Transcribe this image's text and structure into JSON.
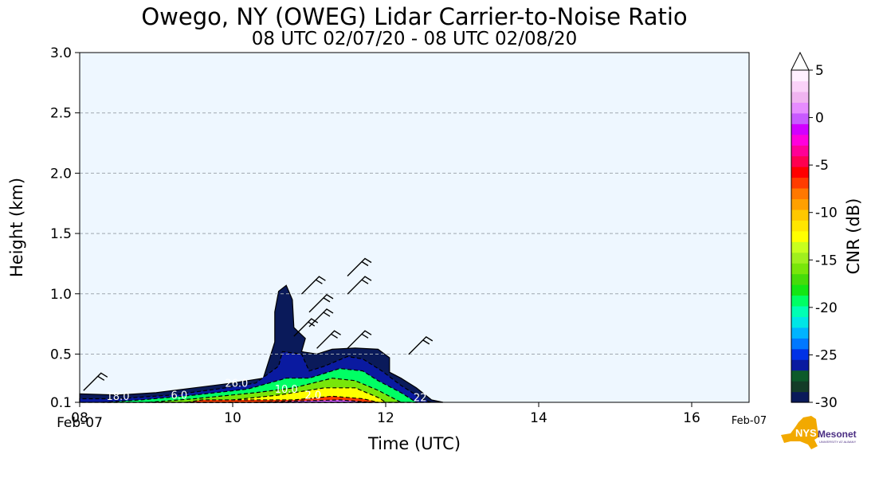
{
  "chart_data": {
    "type": "heatmap",
    "title": "Owego, NY (OWEG) Lidar Carrier-to-Noise Ratio",
    "subtitle": "08 UTC 02/07/20 - 08 UTC 02/08/20",
    "xlabel": "Time (UTC)",
    "ylabel": "Height (km)",
    "xlim": [
      8,
      16.75
    ],
    "ylim": [
      0.1,
      3.0
    ],
    "x_ticks": [
      8,
      10,
      12,
      14,
      16
    ],
    "x_tick_labels": [
      "08",
      "10",
      "12",
      "14",
      "16"
    ],
    "x_date_labels": [
      {
        "x": 8,
        "text": "Feb-07"
      },
      {
        "x": 16.75,
        "text": "Feb-07"
      }
    ],
    "y_ticks": [
      0.1,
      0.5,
      1.0,
      1.5,
      2.0,
      2.5,
      3.0
    ],
    "y_tick_labels": [
      "0.1",
      "0.5",
      "1.0",
      "1.5",
      "2.0",
      "2.5",
      "3.0"
    ],
    "grid": "horizontal-dashed",
    "background_color": "#eef7ff",
    "colorbar": {
      "label": "CNR (dB)",
      "min": -30,
      "max": 5,
      "extend": "max",
      "tick_values": [
        5,
        0,
        -5,
        -10,
        -15,
        -20,
        -25,
        -30
      ],
      "tick_labels": [
        "5",
        "0",
        "-5",
        "-10",
        "-15",
        "-20",
        "-25",
        "-30"
      ],
      "colors": [
        "#0a1a5a",
        "#143c28",
        "#0c5a2a",
        "#0a1aa0",
        "#0032e6",
        "#0078ff",
        "#00b4ff",
        "#00e6e6",
        "#00ffb4",
        "#00ff64",
        "#14e614",
        "#46dc0a",
        "#78e60a",
        "#a0f01e",
        "#c8ff1e",
        "#ffff00",
        "#ffe600",
        "#ffc800",
        "#ffa000",
        "#ff7800",
        "#ff3c00",
        "#ff0000",
        "#ff0050",
        "#ff0096",
        "#ff00dc",
        "#d200ff",
        "#c85aff",
        "#e68cff",
        "#f0b4f0",
        "#fad2f8",
        "#fff0ff"
      ]
    },
    "contour_labels": [
      {
        "x": 8.5,
        "y": 0.12,
        "text": "18.0"
      },
      {
        "x": 9.3,
        "y": 0.13,
        "text": "6.0"
      },
      {
        "x": 10.05,
        "y": 0.23,
        "text": "26.0"
      },
      {
        "x": 10.7,
        "y": 0.18,
        "text": "10.0"
      },
      {
        "x": 11.05,
        "y": 0.13,
        "text": "2.0"
      },
      {
        "x": 12.45,
        "y": 0.11,
        "text": "22"
      }
    ],
    "cnr_regions": [
      {
        "level": -30,
        "polygon": [
          [
            8,
            0.1
          ],
          [
            8,
            0.17
          ],
          [
            8.5,
            0.16
          ],
          [
            9.0,
            0.18
          ],
          [
            9.5,
            0.22
          ],
          [
            10.0,
            0.26
          ],
          [
            10.4,
            0.3
          ],
          [
            10.55,
            0.6
          ],
          [
            10.55,
            0.85
          ],
          [
            10.6,
            1.02
          ],
          [
            10.7,
            1.07
          ],
          [
            10.78,
            0.95
          ],
          [
            10.8,
            0.72
          ],
          [
            10.95,
            0.63
          ],
          [
            10.9,
            0.52
          ],
          [
            11.1,
            0.5
          ],
          [
            11.3,
            0.54
          ],
          [
            11.6,
            0.55
          ],
          [
            11.9,
            0.54
          ],
          [
            12.05,
            0.47
          ],
          [
            12.05,
            0.35
          ],
          [
            12.2,
            0.3
          ],
          [
            12.4,
            0.22
          ],
          [
            12.6,
            0.12
          ],
          [
            12.75,
            0.1
          ]
        ]
      },
      {
        "level": -26,
        "polygon": [
          [
            8,
            0.1
          ],
          [
            8,
            0.13
          ],
          [
            8.5,
            0.13
          ],
          [
            9.2,
            0.16
          ],
          [
            9.8,
            0.21
          ],
          [
            10.3,
            0.26
          ],
          [
            10.6,
            0.4
          ],
          [
            10.65,
            0.52
          ],
          [
            10.9,
            0.5
          ],
          [
            11.0,
            0.36
          ],
          [
            11.2,
            0.4
          ],
          [
            11.5,
            0.48
          ],
          [
            11.7,
            0.46
          ],
          [
            11.95,
            0.36
          ],
          [
            12.2,
            0.24
          ],
          [
            12.5,
            0.12
          ],
          [
            12.6,
            0.1
          ]
        ]
      },
      {
        "level": -20,
        "polygon": [
          [
            8.3,
            0.1
          ],
          [
            8.8,
            0.12
          ],
          [
            9.5,
            0.16
          ],
          [
            10.2,
            0.21
          ],
          [
            10.7,
            0.3
          ],
          [
            11.0,
            0.3
          ],
          [
            11.4,
            0.38
          ],
          [
            11.7,
            0.36
          ],
          [
            11.9,
            0.28
          ],
          [
            12.2,
            0.18
          ],
          [
            12.4,
            0.1
          ]
        ]
      },
      {
        "level": -16,
        "polygon": [
          [
            8.9,
            0.1
          ],
          [
            9.5,
            0.13
          ],
          [
            10.3,
            0.18
          ],
          [
            10.8,
            0.22
          ],
          [
            11.3,
            0.3
          ],
          [
            11.6,
            0.28
          ],
          [
            11.9,
            0.2
          ],
          [
            12.2,
            0.1
          ]
        ]
      },
      {
        "level": -12,
        "polygon": [
          [
            9.4,
            0.1
          ],
          [
            10.0,
            0.12
          ],
          [
            10.6,
            0.16
          ],
          [
            11.2,
            0.22
          ],
          [
            11.6,
            0.22
          ],
          [
            11.9,
            0.14
          ],
          [
            12.0,
            0.1
          ]
        ]
      },
      {
        "level": -7,
        "polygon": [
          [
            9.4,
            0.1
          ],
          [
            9.6,
            0.12
          ],
          [
            10.2,
            0.12
          ],
          [
            10.8,
            0.12
          ],
          [
            11.3,
            0.15
          ],
          [
            11.7,
            0.13
          ],
          [
            11.9,
            0.1
          ]
        ]
      },
      {
        "level": 0,
        "polygon": [
          [
            10.3,
            0.1
          ],
          [
            10.8,
            0.11
          ],
          [
            11.4,
            0.12
          ],
          [
            11.8,
            0.1
          ]
        ]
      }
    ],
    "wind_barbs": [
      {
        "x": 8.05,
        "y": 0.25
      },
      {
        "x": 10.9,
        "y": 1.05
      },
      {
        "x": 11.5,
        "y": 1.2
      },
      {
        "x": 11.5,
        "y": 1.05
      },
      {
        "x": 11.0,
        "y": 0.9
      },
      {
        "x": 11.0,
        "y": 0.78
      },
      {
        "x": 10.8,
        "y": 0.7
      },
      {
        "x": 11.5,
        "y": 0.6
      },
      {
        "x": 12.3,
        "y": 0.55
      },
      {
        "x": 11.1,
        "y": 0.6
      }
    ]
  }
}
